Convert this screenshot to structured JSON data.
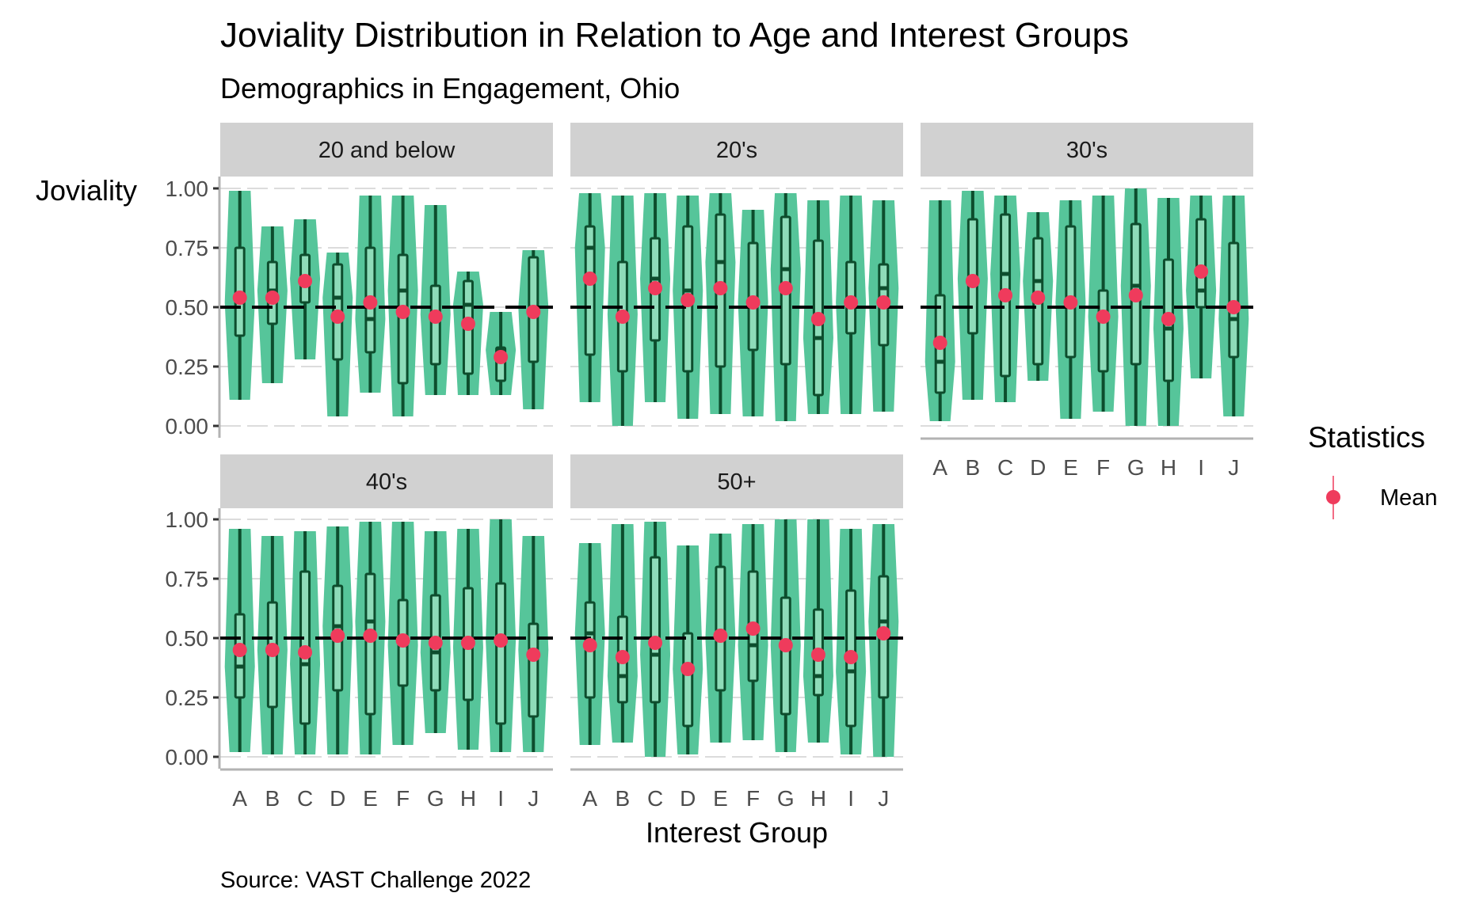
{
  "chart_data": {
    "type": "violin",
    "title": "Joviality Distribution in Relation to Age and Interest Groups",
    "subtitle": "Demographics in Engagement, Ohio",
    "caption": "Source: VAST Challenge 2022",
    "xlabel": "Interest Group",
    "ylabel": "Joviality",
    "ylim": [
      0,
      1
    ],
    "yticks": [
      "0.00",
      "0.25",
      "0.50",
      "0.75",
      "1.00"
    ],
    "ytick_values": [
      0,
      0.25,
      0.5,
      0.75,
      1.0
    ],
    "reference_line": 0.5,
    "categories": [
      "A",
      "B",
      "C",
      "D",
      "E",
      "F",
      "G",
      "H",
      "I",
      "J"
    ],
    "grid": true,
    "legend": {
      "title": "Statistics",
      "position": "right",
      "entries": [
        {
          "label": "Mean",
          "color": "#EF3B5C"
        }
      ]
    },
    "colors": {
      "violin_fill": "#56C59A",
      "box_line": "#0D4D2D",
      "box_fill": "#8EDCB9",
      "mean_point": "#EF3B5C",
      "strip": "#D1D1D1",
      "reference_line": "#000000"
    },
    "panels": [
      {
        "label": "20 and below",
        "groups": [
          {
            "min": 0.11,
            "q1": 0.38,
            "median": 0.52,
            "q3": 0.75,
            "max": 0.99,
            "mean": 0.54
          },
          {
            "min": 0.18,
            "q1": 0.43,
            "median": 0.57,
            "q3": 0.69,
            "max": 0.84,
            "mean": 0.54
          },
          {
            "min": 0.28,
            "q1": 0.52,
            "median": 0.62,
            "q3": 0.72,
            "max": 0.87,
            "mean": 0.61
          },
          {
            "min": 0.04,
            "q1": 0.28,
            "median": 0.54,
            "q3": 0.68,
            "max": 0.73,
            "mean": 0.46
          },
          {
            "min": 0.14,
            "q1": 0.31,
            "median": 0.45,
            "q3": 0.75,
            "max": 0.97,
            "mean": 0.52
          },
          {
            "min": 0.04,
            "q1": 0.18,
            "median": 0.57,
            "q3": 0.72,
            "max": 0.97,
            "mean": 0.48
          },
          {
            "min": 0.13,
            "q1": 0.26,
            "median": 0.47,
            "q3": 0.59,
            "max": 0.93,
            "mean": 0.46
          },
          {
            "min": 0.13,
            "q1": 0.22,
            "median": 0.51,
            "q3": 0.61,
            "max": 0.65,
            "mean": 0.43
          },
          {
            "min": 0.13,
            "q1": 0.19,
            "median": 0.32,
            "q3": 0.33,
            "max": 0.48,
            "mean": 0.29
          },
          {
            "min": 0.07,
            "q1": 0.27,
            "median": 0.5,
            "q3": 0.71,
            "max": 0.74,
            "mean": 0.48
          }
        ]
      },
      {
        "label": "20's",
        "groups": [
          {
            "min": 0.1,
            "q1": 0.3,
            "median": 0.75,
            "q3": 0.84,
            "max": 0.98,
            "mean": 0.62
          },
          {
            "min": 0.0,
            "q1": 0.23,
            "median": 0.47,
            "q3": 0.69,
            "max": 0.97,
            "mean": 0.46
          },
          {
            "min": 0.1,
            "q1": 0.36,
            "median": 0.62,
            "q3": 0.79,
            "max": 0.98,
            "mean": 0.58
          },
          {
            "min": 0.03,
            "q1": 0.23,
            "median": 0.57,
            "q3": 0.84,
            "max": 0.97,
            "mean": 0.53
          },
          {
            "min": 0.05,
            "q1": 0.25,
            "median": 0.69,
            "q3": 0.89,
            "max": 0.98,
            "mean": 0.58
          },
          {
            "min": 0.04,
            "q1": 0.32,
            "median": 0.52,
            "q3": 0.77,
            "max": 0.91,
            "mean": 0.52
          },
          {
            "min": 0.02,
            "q1": 0.26,
            "median": 0.66,
            "q3": 0.88,
            "max": 0.98,
            "mean": 0.58
          },
          {
            "min": 0.05,
            "q1": 0.13,
            "median": 0.37,
            "q3": 0.78,
            "max": 0.95,
            "mean": 0.45
          },
          {
            "min": 0.05,
            "q1": 0.39,
            "median": 0.52,
            "q3": 0.69,
            "max": 0.97,
            "mean": 0.52
          },
          {
            "min": 0.06,
            "q1": 0.34,
            "median": 0.58,
            "q3": 0.68,
            "max": 0.95,
            "mean": 0.52
          }
        ]
      },
      {
        "label": "30's",
        "groups": [
          {
            "min": 0.02,
            "q1": 0.14,
            "median": 0.27,
            "q3": 0.55,
            "max": 0.95,
            "mean": 0.35
          },
          {
            "min": 0.11,
            "q1": 0.39,
            "median": 0.62,
            "q3": 0.87,
            "max": 0.99,
            "mean": 0.61
          },
          {
            "min": 0.1,
            "q1": 0.21,
            "median": 0.64,
            "q3": 0.89,
            "max": 0.97,
            "mean": 0.55
          },
          {
            "min": 0.19,
            "q1": 0.26,
            "median": 0.61,
            "q3": 0.79,
            "max": 0.9,
            "mean": 0.54
          },
          {
            "min": 0.03,
            "q1": 0.29,
            "median": 0.52,
            "q3": 0.84,
            "max": 0.95,
            "mean": 0.52
          },
          {
            "min": 0.06,
            "q1": 0.23,
            "median": 0.46,
            "q3": 0.57,
            "max": 0.97,
            "mean": 0.46
          },
          {
            "min": 0.0,
            "q1": 0.26,
            "median": 0.59,
            "q3": 0.85,
            "max": 1.0,
            "mean": 0.55
          },
          {
            "min": 0.0,
            "q1": 0.19,
            "median": 0.41,
            "q3": 0.7,
            "max": 0.96,
            "mean": 0.45
          },
          {
            "min": 0.2,
            "q1": 0.5,
            "median": 0.57,
            "q3": 0.87,
            "max": 0.97,
            "mean": 0.65
          },
          {
            "min": 0.04,
            "q1": 0.29,
            "median": 0.45,
            "q3": 0.77,
            "max": 0.97,
            "mean": 0.5
          }
        ]
      },
      {
        "label": "40's",
        "groups": [
          {
            "min": 0.02,
            "q1": 0.25,
            "median": 0.38,
            "q3": 0.6,
            "max": 0.96,
            "mean": 0.45
          },
          {
            "min": 0.01,
            "q1": 0.21,
            "median": 0.45,
            "q3": 0.65,
            "max": 0.93,
            "mean": 0.45
          },
          {
            "min": 0.01,
            "q1": 0.14,
            "median": 0.39,
            "q3": 0.78,
            "max": 0.95,
            "mean": 0.44
          },
          {
            "min": 0.01,
            "q1": 0.28,
            "median": 0.55,
            "q3": 0.72,
            "max": 0.97,
            "mean": 0.51
          },
          {
            "min": 0.01,
            "q1": 0.18,
            "median": 0.57,
            "q3": 0.77,
            "max": 0.99,
            "mean": 0.51
          },
          {
            "min": 0.05,
            "q1": 0.3,
            "median": 0.47,
            "q3": 0.66,
            "max": 0.99,
            "mean": 0.49
          },
          {
            "min": 0.1,
            "q1": 0.28,
            "median": 0.44,
            "q3": 0.68,
            "max": 0.95,
            "mean": 0.48
          },
          {
            "min": 0.03,
            "q1": 0.24,
            "median": 0.46,
            "q3": 0.71,
            "max": 0.96,
            "mean": 0.48
          },
          {
            "min": 0.02,
            "q1": 0.14,
            "median": 0.49,
            "q3": 0.73,
            "max": 1.0,
            "mean": 0.49
          },
          {
            "min": 0.02,
            "q1": 0.17,
            "median": 0.45,
            "q3": 0.56,
            "max": 0.93,
            "mean": 0.43
          }
        ]
      },
      {
        "label": "50+",
        "groups": [
          {
            "min": 0.05,
            "q1": 0.25,
            "median": 0.52,
            "q3": 0.65,
            "max": 0.9,
            "mean": 0.47
          },
          {
            "min": 0.06,
            "q1": 0.23,
            "median": 0.34,
            "q3": 0.59,
            "max": 0.98,
            "mean": 0.42
          },
          {
            "min": 0.0,
            "q1": 0.23,
            "median": 0.43,
            "q3": 0.84,
            "max": 0.99,
            "mean": 0.48
          },
          {
            "min": 0.01,
            "q1": 0.13,
            "median": 0.37,
            "q3": 0.52,
            "max": 0.89,
            "mean": 0.37
          },
          {
            "min": 0.06,
            "q1": 0.28,
            "median": 0.5,
            "q3": 0.8,
            "max": 0.94,
            "mean": 0.51
          },
          {
            "min": 0.07,
            "q1": 0.32,
            "median": 0.47,
            "q3": 0.78,
            "max": 0.98,
            "mean": 0.54
          },
          {
            "min": 0.02,
            "q1": 0.18,
            "median": 0.47,
            "q3": 0.67,
            "max": 1.0,
            "mean": 0.47
          },
          {
            "min": 0.06,
            "q1": 0.26,
            "median": 0.34,
            "q3": 0.62,
            "max": 1.0,
            "mean": 0.43
          },
          {
            "min": 0.01,
            "q1": 0.13,
            "median": 0.36,
            "q3": 0.7,
            "max": 0.96,
            "mean": 0.42
          },
          {
            "min": 0.0,
            "q1": 0.25,
            "median": 0.57,
            "q3": 0.76,
            "max": 0.98,
            "mean": 0.52
          }
        ]
      }
    ]
  }
}
